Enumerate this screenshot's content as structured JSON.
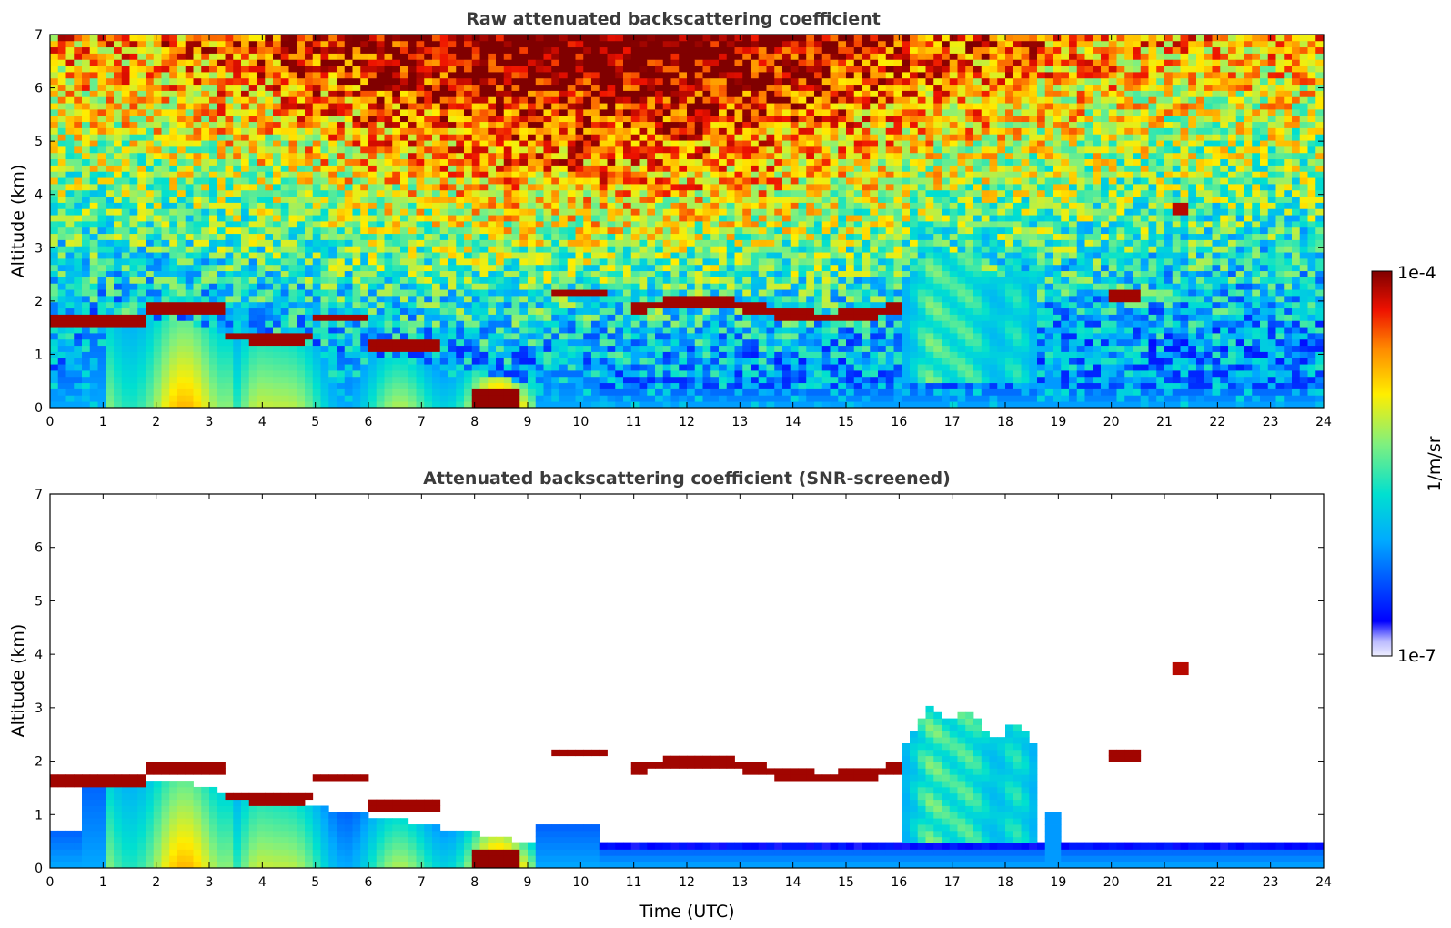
{
  "chart_data": [
    {
      "type": "heatmap",
      "title": "Raw attenuated backscattering coefficient",
      "xlabel": "",
      "ylabel": "Altitude (km)",
      "xlim": [
        0,
        24
      ],
      "ylim": [
        0,
        7
      ],
      "xticks": [
        "0",
        "1",
        "2",
        "3",
        "4",
        "5",
        "6",
        "7",
        "8",
        "9",
        "10",
        "11",
        "12",
        "13",
        "14",
        "15",
        "16",
        "17",
        "18",
        "19",
        "20",
        "21",
        "22",
        "23",
        "24"
      ],
      "yticks": [
        "0",
        "1",
        "2",
        "3",
        "4",
        "5",
        "6",
        "7"
      ],
      "screened": false
    },
    {
      "type": "heatmap",
      "title": "Attenuated backscattering coefficient (SNR-screened)",
      "xlabel": "Time (UTC)",
      "ylabel": "Altitude (km)",
      "xlim": [
        0,
        24
      ],
      "ylim": [
        0,
        7
      ],
      "xticks": [
        "0",
        "1",
        "2",
        "3",
        "4",
        "5",
        "6",
        "7",
        "8",
        "9",
        "10",
        "11",
        "12",
        "13",
        "14",
        "15",
        "16",
        "17",
        "18",
        "19",
        "20",
        "21",
        "22",
        "23",
        "24"
      ],
      "yticks": [
        "0",
        "1",
        "2",
        "3",
        "4",
        "5",
        "6",
        "7"
      ],
      "screened": true
    }
  ],
  "colorbar": {
    "max_label": "1e-4",
    "min_label": "1e-7",
    "unit_label": "1/m/sr",
    "scale": "log"
  }
}
